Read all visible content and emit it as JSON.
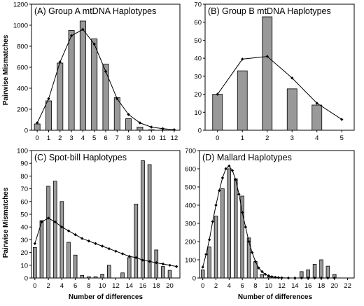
{
  "figure": {
    "ylabel": "Pairwise Mismatches",
    "xlabel": "Number of differences",
    "bar_color": "#999999",
    "line_color": "#000000"
  },
  "chart_data": [
    {
      "type": "bar",
      "title": "(A) Group A mtDNA Haplotypes",
      "xlabel": "",
      "ylabel": "Pairwise Mismatches",
      "xlim": [
        -0.5,
        12.5
      ],
      "ylim": [
        0,
        1200
      ],
      "yticks": [
        0,
        200,
        400,
        600,
        800,
        1000,
        1200
      ],
      "xticks": [
        0,
        1,
        2,
        3,
        4,
        5,
        6,
        7,
        8,
        9,
        10,
        11,
        12
      ],
      "grid": false,
      "legend": "none",
      "series": [
        {
          "kind": "bar",
          "x": [
            0,
            1,
            2,
            3,
            4,
            5,
            6,
            7,
            8,
            9,
            10,
            11,
            12
          ],
          "values": [
            60,
            280,
            640,
            950,
            1040,
            870,
            630,
            310,
            110,
            30,
            5,
            2,
            0
          ]
        },
        {
          "kind": "line",
          "x": [
            0,
            1,
            2,
            3,
            4,
            5,
            6,
            7,
            8,
            9,
            10,
            11,
            12
          ],
          "values": [
            70,
            300,
            650,
            900,
            960,
            820,
            560,
            300,
            150,
            70,
            30,
            15,
            5
          ]
        }
      ]
    },
    {
      "type": "bar",
      "title": "(B) Group B mtDNA Haplotypes",
      "xlabel": "",
      "ylabel": "",
      "xlim": [
        -0.5,
        5.5
      ],
      "ylim": [
        0,
        70
      ],
      "yticks": [
        0,
        10,
        20,
        30,
        40,
        50,
        60,
        70
      ],
      "xticks": [
        0,
        1,
        2,
        3,
        4,
        5
      ],
      "grid": false,
      "legend": "none",
      "series": [
        {
          "kind": "bar",
          "x": [
            0,
            1,
            2,
            3,
            4
          ],
          "values": [
            20,
            33,
            63,
            23,
            14
          ]
        },
        {
          "kind": "line",
          "x": [
            0,
            1,
            2,
            3,
            4,
            5
          ],
          "values": [
            20,
            39.5,
            41,
            29,
            15,
            6
          ]
        }
      ]
    },
    {
      "type": "bar",
      "title": "(C) Spot-bill Haplotypes",
      "xlabel": "Number of differences",
      "ylabel": "Pairwise Mismatches",
      "xlim": [
        -0.5,
        21.5
      ],
      "ylim": [
        0,
        100
      ],
      "yticks": [
        0,
        10,
        20,
        30,
        40,
        50,
        60,
        70,
        80,
        90,
        100
      ],
      "xticks": [
        0,
        2,
        4,
        6,
        8,
        10,
        12,
        14,
        16,
        18,
        20
      ],
      "grid": false,
      "legend": "none",
      "series": [
        {
          "kind": "bar",
          "x": [
            0,
            1,
            2,
            3,
            4,
            5,
            6,
            7,
            8,
            9,
            10,
            11,
            12,
            13,
            14,
            15,
            16,
            17,
            18,
            19,
            20
          ],
          "values": [
            24,
            45,
            72,
            76,
            60,
            28,
            18,
            2,
            1,
            1,
            3,
            10,
            0,
            4,
            16,
            58,
            92,
            89,
            22,
            9,
            6
          ]
        },
        {
          "kind": "line",
          "x": [
            0,
            1,
            2,
            3,
            4,
            5,
            6,
            7,
            8,
            9,
            10,
            11,
            12,
            13,
            14,
            15,
            16,
            17,
            18,
            19,
            20,
            21
          ],
          "values": [
            27,
            44,
            47,
            44,
            40,
            37,
            34,
            31,
            29,
            27,
            25,
            23,
            21,
            19,
            17,
            16,
            14,
            13,
            12,
            11,
            10,
            9
          ]
        }
      ]
    },
    {
      "type": "bar",
      "title": "(D) Mallard Haplotypes",
      "xlabel": "Number of differences",
      "ylabel": "",
      "xlim": [
        -0.5,
        23
      ],
      "ylim": [
        0,
        700
      ],
      "yticks": [
        0,
        100,
        200,
        300,
        400,
        500,
        600,
        700
      ],
      "xticks": [
        0,
        2,
        4,
        6,
        8,
        10,
        12,
        14,
        16,
        18,
        20,
        22
      ],
      "grid": false,
      "legend": "none",
      "series": [
        {
          "kind": "bar",
          "x": [
            0,
            1,
            2,
            3,
            4,
            5,
            6,
            7,
            8,
            9,
            10,
            11,
            12,
            13,
            14,
            15,
            16,
            17,
            18,
            19,
            20,
            21,
            22
          ],
          "values": [
            45,
            170,
            340,
            490,
            600,
            545,
            450,
            220,
            90,
            20,
            5,
            5,
            0,
            0,
            0,
            35,
            45,
            75,
            100,
            65,
            20,
            0,
            0
          ]
        },
        {
          "kind": "line",
          "x": [
            0,
            0.5,
            1,
            1.5,
            2,
            2.5,
            3,
            3.5,
            4,
            4.5,
            5,
            5.5,
            6,
            6.5,
            7,
            7.5,
            8,
            8.5,
            9,
            9.5,
            10,
            10.5,
            11,
            11.5,
            12,
            13,
            14,
            15,
            16,
            17,
            18,
            19,
            20
          ],
          "values": [
            60,
            130,
            210,
            310,
            400,
            480,
            550,
            600,
            615,
            590,
            540,
            460,
            360,
            280,
            200,
            140,
            90,
            55,
            35,
            20,
            12,
            7,
            4,
            2,
            1,
            0,
            0,
            0,
            0,
            0,
            0,
            0,
            0
          ]
        }
      ]
    }
  ]
}
